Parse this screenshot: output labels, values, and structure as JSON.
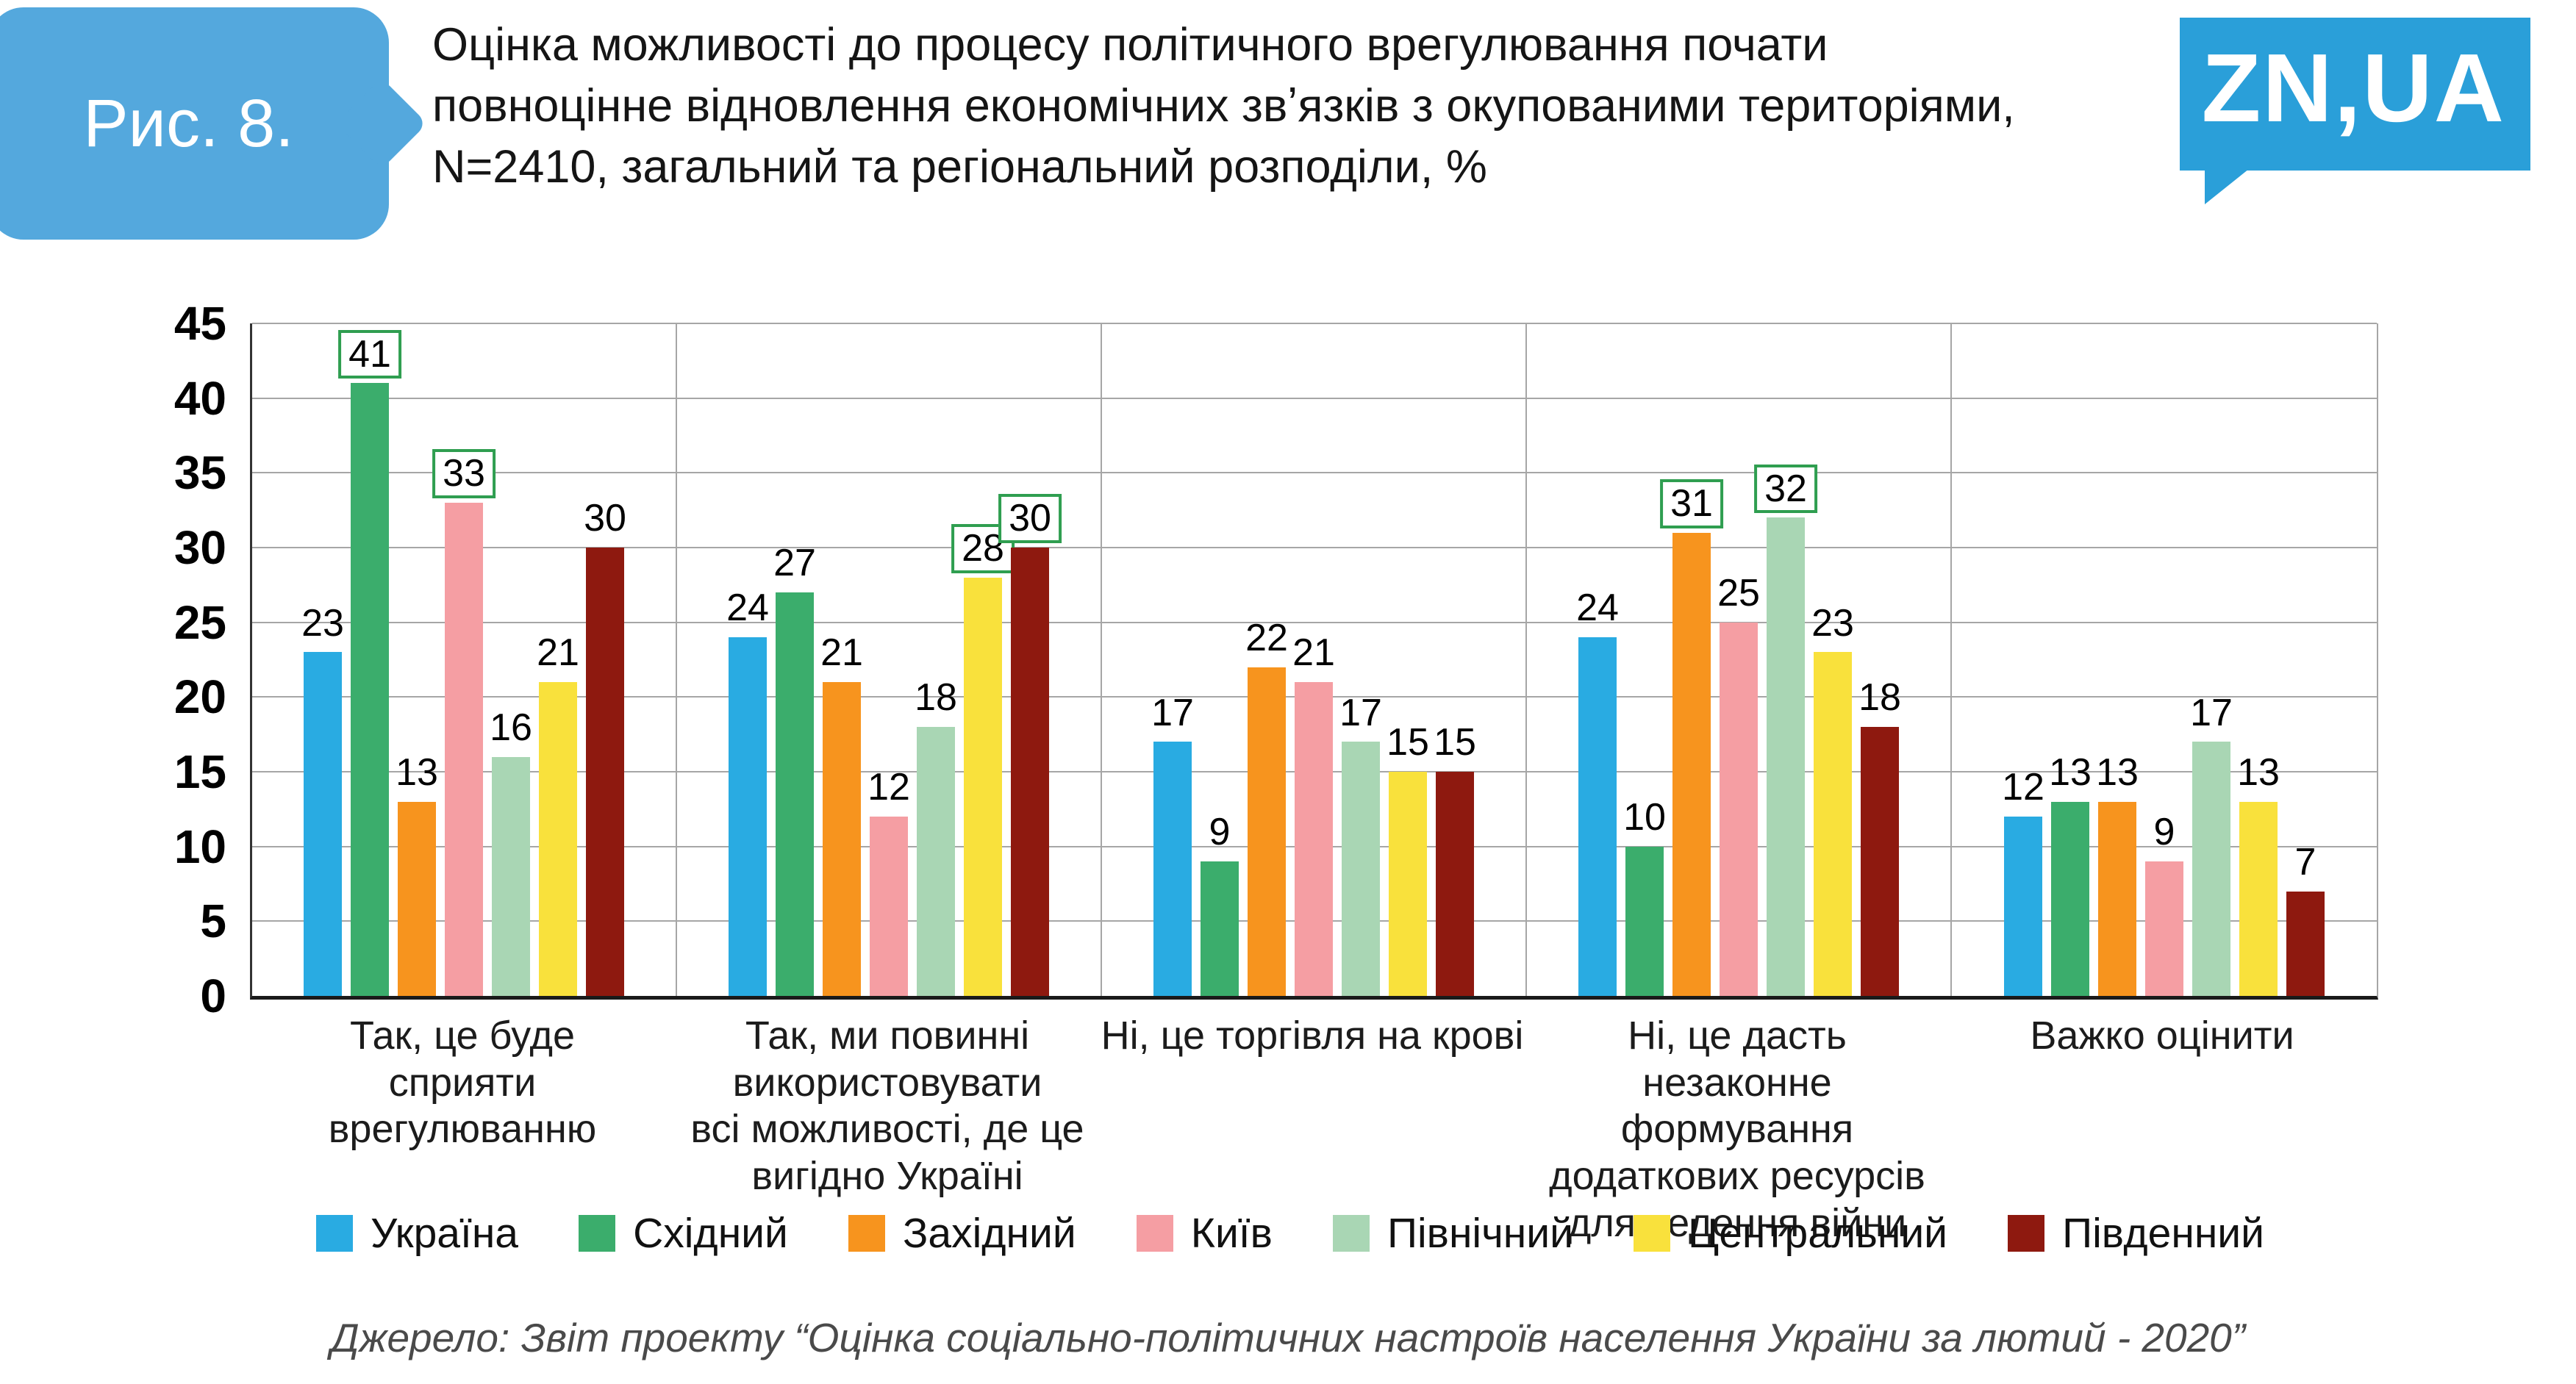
{
  "header": {
    "figure_label": "Рис. 8.",
    "title": "Оцінка можливості до процесу політичного врегулювання почати\nповноцінне відновлення економічних звʼязків з окупованими територіями,\nN=2410,  загальний та регіональний розподіли, %",
    "logo": "ZN,UA",
    "badge_color": "#54A8DD",
    "logo_color": "#2A9FD9"
  },
  "chart_data": {
    "type": "bar",
    "title": "Оцінка можливості до процесу політичного врегулювання почати повноцінне відновлення економічних звʼязків з окупованими територіями, N=2410, загальний та регіональний розподіли, %",
    "xlabel": "",
    "ylabel": "",
    "ylim": [
      0,
      45
    ],
    "ytick_step": 5,
    "grid": true,
    "legend_position": "bottom",
    "highlight_box_color": "#2F9E50",
    "categories": [
      "Так, це буде\nсприяти врегулюванню",
      "Так, ми повинні\nвикористовувати\nвсі можливості, де це\nвигідно Україні",
      "Ні, це торгівля на крові",
      "Ні, це дасть\nнезаконне формування\nдодаткових ресурсів\nдля ведення війни",
      "Важко оцінити"
    ],
    "series": [
      {
        "name": "Україна",
        "color": "#29ABE2",
        "values": [
          23,
          24,
          17,
          24,
          12
        ],
        "boxed": [
          false,
          false,
          false,
          false,
          false
        ]
      },
      {
        "name": "Східний",
        "color": "#3BAD6C",
        "values": [
          41,
          27,
          9,
          10,
          13
        ],
        "boxed": [
          true,
          false,
          false,
          false,
          false
        ]
      },
      {
        "name": "Західний",
        "color": "#F7941E",
        "values": [
          13,
          21,
          22,
          31,
          13
        ],
        "boxed": [
          false,
          false,
          false,
          true,
          false
        ]
      },
      {
        "name": "Київ",
        "color": "#F59EA3",
        "values": [
          33,
          12,
          21,
          25,
          9
        ],
        "boxed": [
          true,
          false,
          false,
          false,
          false
        ]
      },
      {
        "name": "Північний",
        "color": "#A9D6B4",
        "values": [
          16,
          18,
          17,
          32,
          17
        ],
        "boxed": [
          false,
          false,
          false,
          true,
          false
        ]
      },
      {
        "name": "Центральний",
        "color": "#F9E13C",
        "values": [
          21,
          28,
          15,
          23,
          13
        ],
        "boxed": [
          false,
          true,
          false,
          false,
          false
        ]
      },
      {
        "name": "Південний",
        "color": "#8E190F",
        "values": [
          30,
          30,
          15,
          18,
          7
        ],
        "boxed": [
          false,
          true,
          false,
          false,
          false
        ]
      }
    ]
  },
  "source": "Джерело: Звіт проекту “Оцінка соціально-політичних настроїв населення України за лютий - 2020”"
}
